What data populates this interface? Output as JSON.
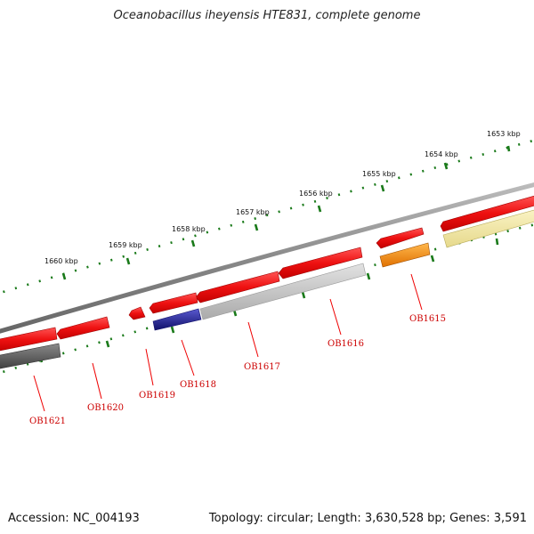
{
  "title": "Oceanobacillus iheyensis HTE831, complete genome",
  "accession": "Accession: NC_004193",
  "stats": "Topology: circular; Length: 3,630,528 bp; Genes: 3,591",
  "colors": {
    "backbone": "#8a8a8a",
    "tick": "#1a7a1a",
    "gene_fwd": "#ee1111",
    "label": "#cc0000",
    "orange": "#ff8800",
    "navy": "#1a1a8a",
    "dark_gray": "#555555",
    "light_gray": "#c0c0c0",
    "pale_yellow": "#f2e9a0"
  },
  "kbp_labels": [
    "1653 kbp",
    "1654 kbp",
    "1655 kbp",
    "1656 kbp",
    "1657 kbp",
    "1658 kbp",
    "1659 kbp",
    "1660 kbp"
  ],
  "genes": [
    {
      "label": "OB1615"
    },
    {
      "label": "OB1616"
    },
    {
      "label": "OB1617"
    },
    {
      "label": "OB1618"
    },
    {
      "label": "OB1619"
    },
    {
      "label": "OB1620"
    },
    {
      "label": "OB1621"
    }
  ]
}
